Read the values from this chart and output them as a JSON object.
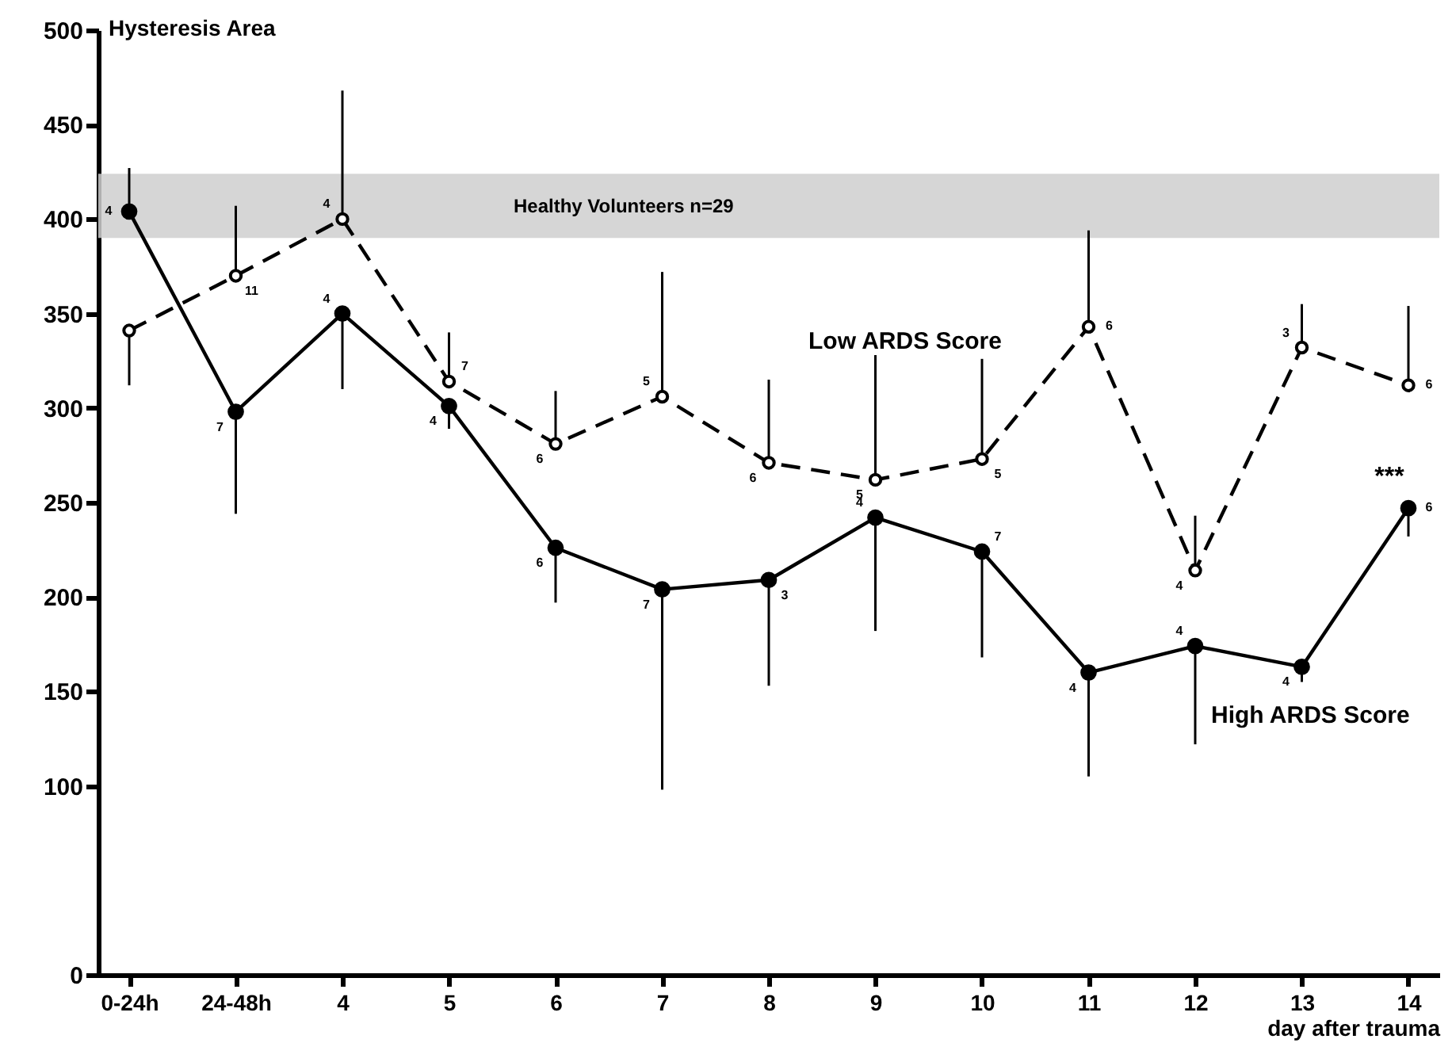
{
  "chart_data": {
    "type": "line",
    "ylabel": "Hysteresis Area",
    "xlabel": "day after trauma",
    "categories": [
      "0-24h",
      "24-48h",
      "4",
      "5",
      "6",
      "7",
      "8",
      "9",
      "10",
      "11",
      "12",
      "13",
      "14"
    ],
    "series": [
      {
        "name": "Low ARDS Score",
        "color": "#000000",
        "line_style": "dashed",
        "values": [
          341,
          370,
          400,
          314,
          281,
          306,
          271,
          262,
          273,
          343,
          214,
          332,
          312
        ],
        "errors": [
          [
            312,
            341
          ],
          [
            370,
            407
          ],
          [
            400,
            468
          ],
          [
            314,
            340
          ],
          [
            281,
            309
          ],
          [
            306,
            372
          ],
          [
            271,
            315
          ],
          [
            262,
            328
          ],
          [
            273,
            326
          ],
          [
            343,
            394
          ],
          [
            214,
            243
          ],
          [
            332,
            355
          ],
          [
            312,
            354
          ]
        ]
      },
      {
        "name": "High ARDS Score",
        "color": "#000000",
        "line_style": "solid",
        "values": [
          404,
          298,
          350,
          301,
          226,
          204,
          209,
          242,
          224,
          160,
          174,
          163,
          247
        ],
        "errors": [
          [
            404,
            427
          ],
          [
            244,
            298
          ],
          [
            310,
            350
          ],
          [
            289,
            301
          ],
          [
            197,
            226
          ],
          [
            98,
            204
          ],
          [
            153,
            209
          ],
          [
            182,
            242
          ],
          [
            168,
            224
          ],
          [
            105,
            160
          ],
          [
            122,
            174
          ],
          [
            155,
            163
          ],
          [
            232,
            247
          ]
        ]
      }
    ],
    "marker": "circle",
    "ylim": [
      0,
      500
    ],
    "yticks": [
      0,
      100,
      150,
      200,
      250,
      300,
      350,
      400,
      450,
      500
    ],
    "bands": [
      {
        "axis": "y",
        "from": 390,
        "to": 424,
        "label": "Healthy Volunteers n=29",
        "color": "#cfcfcf"
      }
    ],
    "annotations": [
      {
        "text": "11",
        "x": "24-48h",
        "y": 370
      },
      {
        "text": "4",
        "x": "4",
        "y": 400
      },
      {
        "text": "7",
        "x": "5",
        "y": 314
      },
      {
        "text": "6",
        "x": "6",
        "y": 281
      },
      {
        "text": "5",
        "x": "7",
        "y": 306
      },
      {
        "text": "6",
        "x": "8",
        "y": 271
      },
      {
        "text": "5",
        "x": "9",
        "y": 262
      },
      {
        "text": "5",
        "x": "10",
        "y": 273
      },
      {
        "text": "6",
        "x": "11",
        "y": 343
      },
      {
        "text": "4",
        "x": "12",
        "y": 214
      },
      {
        "text": "3",
        "x": "13",
        "y": 332
      },
      {
        "text": "6",
        "x": "14",
        "y": 312
      },
      {
        "text": "4",
        "x": "0-24h",
        "y": 404
      },
      {
        "text": "7",
        "x": "24-48h",
        "y": 298
      },
      {
        "text": "4",
        "x": "4",
        "y": 350
      },
      {
        "text": "4",
        "x": "5",
        "y": 301
      },
      {
        "text": "6",
        "x": "6",
        "y": 226
      },
      {
        "text": "7",
        "x": "7",
        "y": 204
      },
      {
        "text": "3",
        "x": "8",
        "y": 209
      },
      {
        "text": "4",
        "x": "9",
        "y": 242
      },
      {
        "text": "7",
        "x": "10",
        "y": 224
      },
      {
        "text": "4",
        "x": "11",
        "y": 160
      },
      {
        "text": "4",
        "x": "12",
        "y": 174
      },
      {
        "text": "4",
        "x": "13",
        "y": 163
      },
      {
        "text": "6",
        "x": "14",
        "y": 247
      },
      "***"
    ],
    "grid": false
  }
}
